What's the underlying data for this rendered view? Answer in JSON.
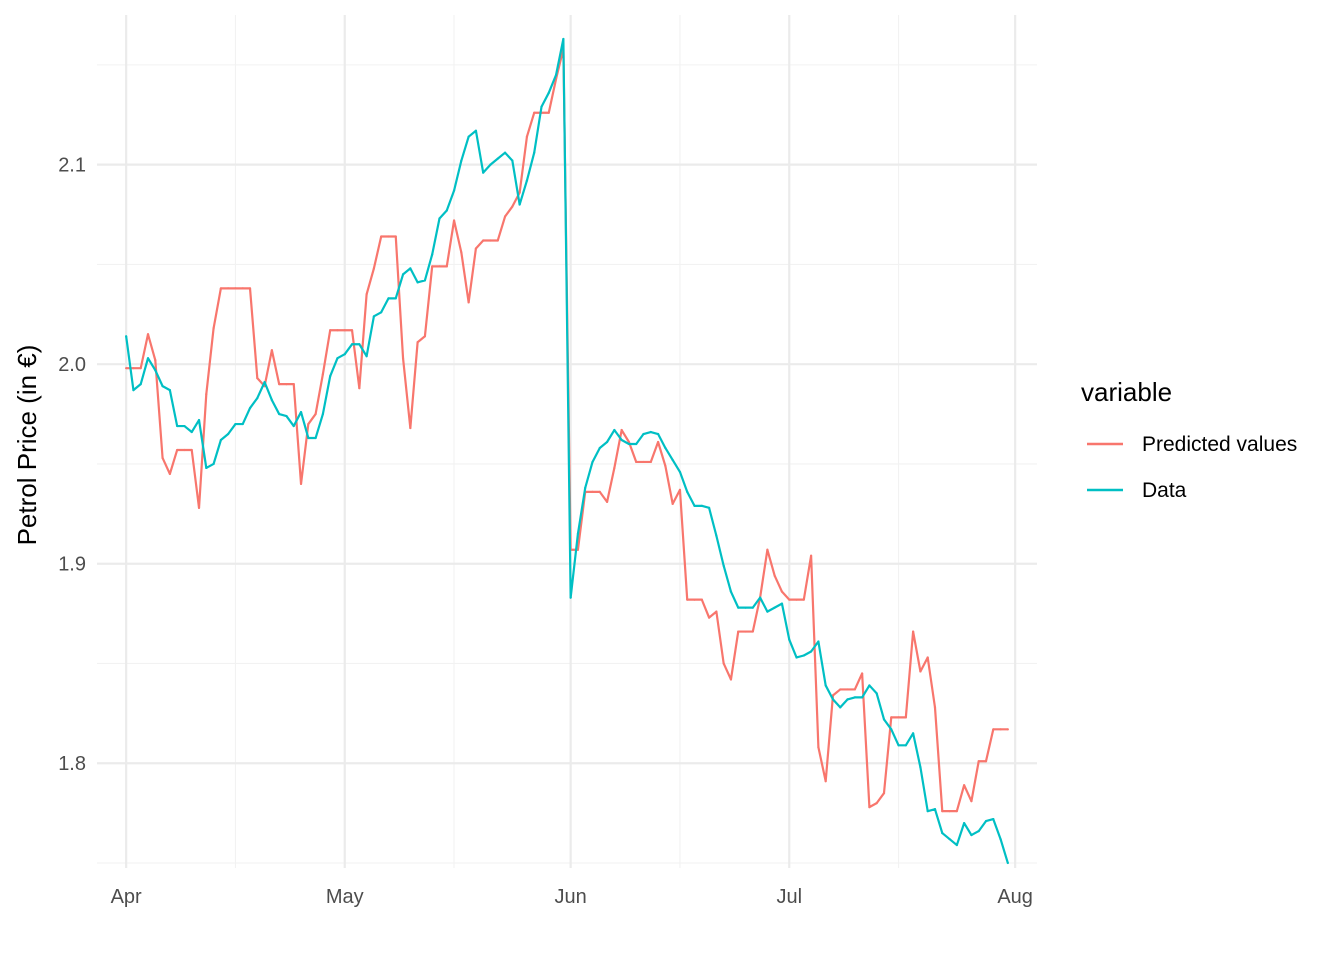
{
  "chart_data": {
    "type": "line",
    "title": "",
    "xlabel": "",
    "ylabel": "Petrol Price (in €)",
    "x_range": [
      "2022-03-28",
      "2022-08-04"
    ],
    "ylim": [
      1.7475,
      2.175
    ],
    "grid": true,
    "x_ticks": [
      {
        "date": "2022-04-01",
        "label": "Apr"
      },
      {
        "date": "2022-05-01",
        "label": "May"
      },
      {
        "date": "2022-06-01",
        "label": "Jun"
      },
      {
        "date": "2022-07-01",
        "label": "Jul"
      },
      {
        "date": "2022-08-01",
        "label": "Aug"
      }
    ],
    "x_minor_ticks": [
      "2022-04-16",
      "2022-05-16",
      "2022-06-16",
      "2022-07-16"
    ],
    "y_ticks": [
      {
        "value": 1.8,
        "label": "1.8"
      },
      {
        "value": 1.9,
        "label": "1.9"
      },
      {
        "value": 2.0,
        "label": "2.0"
      },
      {
        "value": 2.1,
        "label": "2.1"
      }
    ],
    "y_minor_ticks": [
      1.75,
      1.85,
      1.95,
      2.05,
      2.15
    ],
    "legend": {
      "title": "variable",
      "position": "right"
    },
    "series": [
      {
        "name": "Predicted values",
        "color": "#F8766D",
        "points": [
          [
            "2022-04-01",
            1.998
          ],
          [
            "2022-04-02",
            1.998
          ],
          [
            "2022-04-03",
            1.998
          ],
          [
            "2022-04-04",
            2.015
          ],
          [
            "2022-04-05",
            2.002
          ],
          [
            "2022-04-06",
            1.953
          ],
          [
            "2022-04-07",
            1.945
          ],
          [
            "2022-04-08",
            1.957
          ],
          [
            "2022-04-09",
            1.957
          ],
          [
            "2022-04-10",
            1.957
          ],
          [
            "2022-04-11",
            1.928
          ],
          [
            "2022-04-12",
            1.985
          ],
          [
            "2022-04-13",
            2.018
          ],
          [
            "2022-04-14",
            2.038
          ],
          [
            "2022-04-15",
            2.038
          ],
          [
            "2022-04-16",
            2.038
          ],
          [
            "2022-04-17",
            2.038
          ],
          [
            "2022-04-18",
            2.038
          ],
          [
            "2022-04-19",
            1.993
          ],
          [
            "2022-04-20",
            1.989
          ],
          [
            "2022-04-21",
            2.007
          ],
          [
            "2022-04-22",
            1.99
          ],
          [
            "2022-04-23",
            1.99
          ],
          [
            "2022-04-24",
            1.99
          ],
          [
            "2022-04-25",
            1.94
          ],
          [
            "2022-04-26",
            1.97
          ],
          [
            "2022-04-27",
            1.975
          ],
          [
            "2022-04-28",
            1.995
          ],
          [
            "2022-04-29",
            2.017
          ],
          [
            "2022-04-30",
            2.017
          ],
          [
            "2022-05-01",
            2.017
          ],
          [
            "2022-05-02",
            2.017
          ],
          [
            "2022-05-03",
            1.988
          ],
          [
            "2022-05-04",
            2.035
          ],
          [
            "2022-05-05",
            2.048
          ],
          [
            "2022-05-06",
            2.064
          ],
          [
            "2022-05-07",
            2.064
          ],
          [
            "2022-05-08",
            2.064
          ],
          [
            "2022-05-09",
            2.003
          ],
          [
            "2022-05-10",
            1.968
          ],
          [
            "2022-05-11",
            2.011
          ],
          [
            "2022-05-12",
            2.014
          ],
          [
            "2022-05-13",
            2.049
          ],
          [
            "2022-05-14",
            2.049
          ],
          [
            "2022-05-15",
            2.049
          ],
          [
            "2022-05-16",
            2.072
          ],
          [
            "2022-05-17",
            2.056
          ],
          [
            "2022-05-18",
            2.031
          ],
          [
            "2022-05-19",
            2.058
          ],
          [
            "2022-05-20",
            2.062
          ],
          [
            "2022-05-21",
            2.062
          ],
          [
            "2022-05-22",
            2.062
          ],
          [
            "2022-05-23",
            2.074
          ],
          [
            "2022-05-24",
            2.079
          ],
          [
            "2022-05-25",
            2.086
          ],
          [
            "2022-05-26",
            2.114
          ],
          [
            "2022-05-27",
            2.126
          ],
          [
            "2022-05-28",
            2.126
          ],
          [
            "2022-05-29",
            2.126
          ],
          [
            "2022-05-30",
            2.143
          ],
          [
            "2022-05-31",
            2.158
          ],
          [
            "2022-06-01",
            1.907
          ],
          [
            "2022-06-02",
            1.907
          ],
          [
            "2022-06-03",
            1.936
          ],
          [
            "2022-06-04",
            1.936
          ],
          [
            "2022-06-05",
            1.936
          ],
          [
            "2022-06-06",
            1.931
          ],
          [
            "2022-06-07",
            1.948
          ],
          [
            "2022-06-08",
            1.967
          ],
          [
            "2022-06-09",
            1.961
          ],
          [
            "2022-06-10",
            1.951
          ],
          [
            "2022-06-11",
            1.951
          ],
          [
            "2022-06-12",
            1.951
          ],
          [
            "2022-06-13",
            1.961
          ],
          [
            "2022-06-14",
            1.949
          ],
          [
            "2022-06-15",
            1.93
          ],
          [
            "2022-06-16",
            1.937
          ],
          [
            "2022-06-17",
            1.882
          ],
          [
            "2022-06-18",
            1.882
          ],
          [
            "2022-06-19",
            1.882
          ],
          [
            "2022-06-20",
            1.873
          ],
          [
            "2022-06-21",
            1.876
          ],
          [
            "2022-06-22",
            1.85
          ],
          [
            "2022-06-23",
            1.842
          ],
          [
            "2022-06-24",
            1.866
          ],
          [
            "2022-06-25",
            1.866
          ],
          [
            "2022-06-26",
            1.866
          ],
          [
            "2022-06-27",
            1.883
          ],
          [
            "2022-06-28",
            1.907
          ],
          [
            "2022-06-29",
            1.894
          ],
          [
            "2022-06-30",
            1.886
          ],
          [
            "2022-07-01",
            1.882
          ],
          [
            "2022-07-02",
            1.882
          ],
          [
            "2022-07-03",
            1.882
          ],
          [
            "2022-07-04",
            1.904
          ],
          [
            "2022-07-05",
            1.808
          ],
          [
            "2022-07-06",
            1.791
          ],
          [
            "2022-07-07",
            1.834
          ],
          [
            "2022-07-08",
            1.837
          ],
          [
            "2022-07-09",
            1.837
          ],
          [
            "2022-07-10",
            1.837
          ],
          [
            "2022-07-11",
            1.845
          ],
          [
            "2022-07-12",
            1.778
          ],
          [
            "2022-07-13",
            1.78
          ],
          [
            "2022-07-14",
            1.785
          ],
          [
            "2022-07-15",
            1.823
          ],
          [
            "2022-07-16",
            1.823
          ],
          [
            "2022-07-17",
            1.823
          ],
          [
            "2022-07-18",
            1.866
          ],
          [
            "2022-07-19",
            1.846
          ],
          [
            "2022-07-20",
            1.853
          ],
          [
            "2022-07-21",
            1.828
          ],
          [
            "2022-07-22",
            1.776
          ],
          [
            "2022-07-23",
            1.776
          ],
          [
            "2022-07-24",
            1.776
          ],
          [
            "2022-07-25",
            1.789
          ],
          [
            "2022-07-26",
            1.781
          ],
          [
            "2022-07-27",
            1.801
          ],
          [
            "2022-07-28",
            1.801
          ],
          [
            "2022-07-29",
            1.817
          ],
          [
            "2022-07-30",
            1.817
          ],
          [
            "2022-07-31",
            1.817
          ]
        ]
      },
      {
        "name": "Data",
        "color": "#00BFC4",
        "points": [
          [
            "2022-04-01",
            2.014
          ],
          [
            "2022-04-02",
            1.987
          ],
          [
            "2022-04-03",
            1.99
          ],
          [
            "2022-04-04",
            2.003
          ],
          [
            "2022-04-05",
            1.997
          ],
          [
            "2022-04-06",
            1.989
          ],
          [
            "2022-04-07",
            1.987
          ],
          [
            "2022-04-08",
            1.969
          ],
          [
            "2022-04-09",
            1.969
          ],
          [
            "2022-04-10",
            1.966
          ],
          [
            "2022-04-11",
            1.972
          ],
          [
            "2022-04-12",
            1.948
          ],
          [
            "2022-04-13",
            1.95
          ],
          [
            "2022-04-14",
            1.962
          ],
          [
            "2022-04-15",
            1.965
          ],
          [
            "2022-04-16",
            1.97
          ],
          [
            "2022-04-17",
            1.97
          ],
          [
            "2022-04-18",
            1.978
          ],
          [
            "2022-04-19",
            1.983
          ],
          [
            "2022-04-20",
            1.991
          ],
          [
            "2022-04-21",
            1.982
          ],
          [
            "2022-04-22",
            1.975
          ],
          [
            "2022-04-23",
            1.974
          ],
          [
            "2022-04-24",
            1.969
          ],
          [
            "2022-04-25",
            1.976
          ],
          [
            "2022-04-26",
            1.963
          ],
          [
            "2022-04-27",
            1.963
          ],
          [
            "2022-04-28",
            1.975
          ],
          [
            "2022-04-29",
            1.994
          ],
          [
            "2022-04-30",
            2.003
          ],
          [
            "2022-05-01",
            2.005
          ],
          [
            "2022-05-02",
            2.01
          ],
          [
            "2022-05-03",
            2.01
          ],
          [
            "2022-05-04",
            2.004
          ],
          [
            "2022-05-05",
            2.024
          ],
          [
            "2022-05-06",
            2.026
          ],
          [
            "2022-05-07",
            2.033
          ],
          [
            "2022-05-08",
            2.033
          ],
          [
            "2022-05-09",
            2.045
          ],
          [
            "2022-05-10",
            2.048
          ],
          [
            "2022-05-11",
            2.041
          ],
          [
            "2022-05-12",
            2.042
          ],
          [
            "2022-05-13",
            2.055
          ],
          [
            "2022-05-14",
            2.073
          ],
          [
            "2022-05-15",
            2.077
          ],
          [
            "2022-05-16",
            2.087
          ],
          [
            "2022-05-17",
            2.102
          ],
          [
            "2022-05-18",
            2.114
          ],
          [
            "2022-05-19",
            2.117
          ],
          [
            "2022-05-20",
            2.096
          ],
          [
            "2022-05-21",
            2.1
          ],
          [
            "2022-05-22",
            2.103
          ],
          [
            "2022-05-23",
            2.106
          ],
          [
            "2022-05-24",
            2.102
          ],
          [
            "2022-05-25",
            2.08
          ],
          [
            "2022-05-26",
            2.092
          ],
          [
            "2022-05-27",
            2.106
          ],
          [
            "2022-05-28",
            2.129
          ],
          [
            "2022-05-29",
            2.136
          ],
          [
            "2022-05-30",
            2.145
          ],
          [
            "2022-05-31",
            2.163
          ],
          [
            "2022-06-01",
            1.883
          ],
          [
            "2022-06-02",
            1.915
          ],
          [
            "2022-06-03",
            1.938
          ],
          [
            "2022-06-04",
            1.951
          ],
          [
            "2022-06-05",
            1.958
          ],
          [
            "2022-06-06",
            1.961
          ],
          [
            "2022-06-07",
            1.967
          ],
          [
            "2022-06-08",
            1.962
          ],
          [
            "2022-06-09",
            1.96
          ],
          [
            "2022-06-10",
            1.96
          ],
          [
            "2022-06-11",
            1.965
          ],
          [
            "2022-06-12",
            1.966
          ],
          [
            "2022-06-13",
            1.965
          ],
          [
            "2022-06-14",
            1.958
          ],
          [
            "2022-06-15",
            1.952
          ],
          [
            "2022-06-16",
            1.946
          ],
          [
            "2022-06-17",
            1.936
          ],
          [
            "2022-06-18",
            1.929
          ],
          [
            "2022-06-19",
            1.929
          ],
          [
            "2022-06-20",
            1.928
          ],
          [
            "2022-06-21",
            1.914
          ],
          [
            "2022-06-22",
            1.899
          ],
          [
            "2022-06-23",
            1.886
          ],
          [
            "2022-06-24",
            1.878
          ],
          [
            "2022-06-25",
            1.878
          ],
          [
            "2022-06-26",
            1.878
          ],
          [
            "2022-06-27",
            1.883
          ],
          [
            "2022-06-28",
            1.876
          ],
          [
            "2022-06-29",
            1.878
          ],
          [
            "2022-06-30",
            1.88
          ],
          [
            "2022-07-01",
            1.862
          ],
          [
            "2022-07-02",
            1.853
          ],
          [
            "2022-07-03",
            1.854
          ],
          [
            "2022-07-04",
            1.856
          ],
          [
            "2022-07-05",
            1.861
          ],
          [
            "2022-07-06",
            1.839
          ],
          [
            "2022-07-07",
            1.832
          ],
          [
            "2022-07-08",
            1.828
          ],
          [
            "2022-07-09",
            1.832
          ],
          [
            "2022-07-10",
            1.833
          ],
          [
            "2022-07-11",
            1.833
          ],
          [
            "2022-07-12",
            1.839
          ],
          [
            "2022-07-13",
            1.835
          ],
          [
            "2022-07-14",
            1.822
          ],
          [
            "2022-07-15",
            1.817
          ],
          [
            "2022-07-16",
            1.809
          ],
          [
            "2022-07-17",
            1.809
          ],
          [
            "2022-07-18",
            1.815
          ],
          [
            "2022-07-19",
            1.798
          ],
          [
            "2022-07-20",
            1.776
          ],
          [
            "2022-07-21",
            1.777
          ],
          [
            "2022-07-22",
            1.765
          ],
          [
            "2022-07-23",
            1.762
          ],
          [
            "2022-07-24",
            1.759
          ],
          [
            "2022-07-25",
            1.77
          ],
          [
            "2022-07-26",
            1.764
          ],
          [
            "2022-07-27",
            1.766
          ],
          [
            "2022-07-28",
            1.771
          ],
          [
            "2022-07-29",
            1.772
          ],
          [
            "2022-07-30",
            1.762
          ],
          [
            "2022-07-31",
            1.75
          ]
        ]
      }
    ]
  }
}
